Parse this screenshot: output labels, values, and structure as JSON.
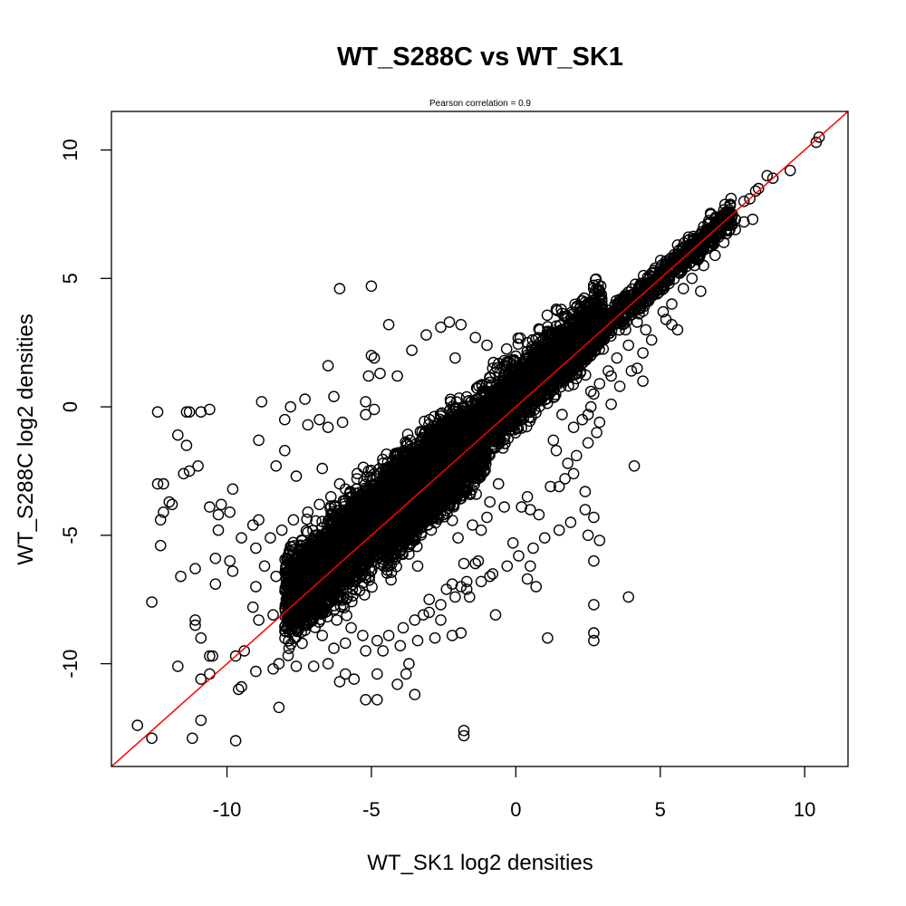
{
  "chart_data": {
    "type": "scatter",
    "title": "WT_S288C vs WT_SK1",
    "subtitle": "Pearson correlation =  0.9",
    "xlabel": "WT_SK1 log2 densities",
    "ylabel": "WT_S288C log2 densities",
    "xlim": [
      -14.0,
      11.5
    ],
    "ylim": [
      -14.0,
      11.5
    ],
    "x_ticks": [
      -10,
      -5,
      0,
      5,
      10
    ],
    "y_ticks": [
      -10,
      -5,
      0,
      5,
      10
    ],
    "x_tick_labels": [
      "-10",
      "-5",
      "0",
      "5",
      "10"
    ],
    "y_tick_labels": [
      "-10",
      "-5",
      "0",
      "5",
      "10"
    ],
    "grid": false,
    "point_color": "#000000",
    "fit_line": {
      "color": "#ff0000",
      "intercept": 0,
      "slope": 1
    },
    "points": [
      [
        10.5,
        10.5
      ],
      [
        10.4,
        10.3
      ],
      [
        9.5,
        9.2
      ],
      [
        8.9,
        8.9
      ],
      [
        8.7,
        9.0
      ],
      [
        8.4,
        8.5
      ],
      [
        8.3,
        8.4
      ],
      [
        8.1,
        8.1
      ],
      [
        7.9,
        8.0
      ],
      [
        8.2,
        7.3
      ],
      [
        7.6,
        7.3
      ],
      [
        7.3,
        7.5
      ],
      [
        7.0,
        7.2
      ],
      [
        6.8,
        6.6
      ],
      [
        6.5,
        6.7
      ],
      [
        6.2,
        6.3
      ],
      [
        6.0,
        6.1
      ],
      [
        5.8,
        5.6
      ],
      [
        5.5,
        5.8
      ],
      [
        5.3,
        5.1
      ],
      [
        5.0,
        5.2
      ],
      [
        6.4,
        4.5
      ],
      [
        5.6,
        6.3
      ],
      [
        4.9,
        4.4
      ],
      [
        4.6,
        4.8
      ],
      [
        4.3,
        4.0
      ],
      [
        4.0,
        4.1
      ],
      [
        3.8,
        3.6
      ],
      [
        3.5,
        3.7
      ],
      [
        3.2,
        3.0
      ],
      [
        3.0,
        3.3
      ],
      [
        2.7,
        2.5
      ],
      [
        2.5,
        2.9
      ],
      [
        2.2,
        2.0
      ],
      [
        2.0,
        2.4
      ],
      [
        5.2,
        3.4
      ],
      [
        5.4,
        3.2
      ],
      [
        4.5,
        3.0
      ],
      [
        5.6,
        3.0
      ],
      [
        4.4,
        1.0
      ],
      [
        4.2,
        1.5
      ],
      [
        3.9,
        2.4
      ],
      [
        3.5,
        1.9
      ],
      [
        3.3,
        1.2
      ],
      [
        2.9,
        0.9
      ],
      [
        2.7,
        0.5
      ],
      [
        2.5,
        -0.3
      ],
      [
        2.6,
        0.0
      ],
      [
        2.3,
        -0.5
      ],
      [
        2.0,
        -0.8
      ],
      [
        2.8,
        -1.0
      ],
      [
        3.2,
        1.4
      ],
      [
        1.8,
        -2.2
      ],
      [
        2.0,
        -2.6
      ],
      [
        1.5,
        -3.1
      ],
      [
        2.4,
        -3.3
      ],
      [
        2.4,
        -4.0
      ],
      [
        2.7,
        -4.3
      ],
      [
        2.5,
        -5.0
      ],
      [
        2.9,
        -5.2
      ],
      [
        2.7,
        -6.0
      ],
      [
        3.9,
        -7.4
      ],
      [
        2.7,
        -7.7
      ],
      [
        2.7,
        -8.8
      ],
      [
        2.7,
        -9.1
      ],
      [
        4.1,
        -2.3
      ],
      [
        1.1,
        -9.0
      ],
      [
        0.7,
        -7.0
      ],
      [
        0.5,
        -6.2
      ],
      [
        0.4,
        -6.7
      ],
      [
        1.2,
        -3.1
      ],
      [
        0.5,
        -4.0
      ],
      [
        -0.1,
        -5.3
      ],
      [
        -0.7,
        -8.1
      ],
      [
        -0.9,
        -6.6
      ],
      [
        -1.3,
        -6.0
      ],
      [
        -1.7,
        -6.8
      ],
      [
        -1.6,
        -7.4
      ],
      [
        -1.9,
        -8.8
      ],
      [
        -1.8,
        -12.6
      ],
      [
        -1.8,
        -12.8
      ],
      [
        -3.8,
        -10.4
      ],
      [
        -4.8,
        -10.4
      ],
      [
        -4.8,
        -11.4
      ],
      [
        -5.2,
        -11.4
      ],
      [
        -5.9,
        -10.4
      ],
      [
        -2.1,
        1.9
      ],
      [
        -2.3,
        3.3
      ],
      [
        -2.6,
        3.1
      ],
      [
        -1.9,
        3.2
      ],
      [
        -1.4,
        2.7
      ],
      [
        -1.0,
        2.4
      ],
      [
        -0.8,
        1.5
      ],
      [
        -3.1,
        2.8
      ],
      [
        -3.6,
        2.2
      ],
      [
        -4.4,
        3.2
      ],
      [
        -5.0,
        2.0
      ],
      [
        -4.9,
        1.9
      ],
      [
        -4.1,
        1.2
      ],
      [
        -5.1,
        1.2
      ],
      [
        -4.7,
        1.3
      ],
      [
        -5.2,
        0.2
      ],
      [
        -4.9,
        -0.1
      ],
      [
        -5.2,
        -0.3
      ],
      [
        -6.1,
        4.6
      ],
      [
        -5.0,
        4.7
      ],
      [
        -6.5,
        1.6
      ],
      [
        -7.3,
        0.3
      ],
      [
        -6.3,
        0.4
      ],
      [
        -7.8,
        0.0
      ],
      [
        -8.8,
        0.2
      ],
      [
        -6.8,
        -0.5
      ],
      [
        -6.5,
        -0.8
      ],
      [
        -7.2,
        -0.7
      ],
      [
        -6.0,
        -0.6
      ],
      [
        -8.0,
        -0.5
      ],
      [
        -10.6,
        -0.1
      ],
      [
        -10.9,
        -0.2
      ],
      [
        -11.4,
        -0.2
      ],
      [
        -11.3,
        -0.2
      ],
      [
        -12.4,
        -0.2
      ],
      [
        -11.7,
        -1.1
      ],
      [
        -11.4,
        -1.5
      ],
      [
        -11.0,
        -2.3
      ],
      [
        -11.3,
        -2.5
      ],
      [
        -11.5,
        -2.6
      ],
      [
        -12.2,
        -3.0
      ],
      [
        -12.4,
        -3.0
      ],
      [
        -12.0,
        -3.7
      ],
      [
        -11.9,
        -3.8
      ],
      [
        -12.2,
        -4.1
      ],
      [
        -12.3,
        -4.4
      ],
      [
        -12.3,
        -5.4
      ],
      [
        -11.6,
        -6.6
      ],
      [
        -11.1,
        -6.3
      ],
      [
        -12.6,
        -7.6
      ],
      [
        -11.1,
        -8.3
      ],
      [
        -11.1,
        -8.5
      ],
      [
        -10.9,
        -9.0
      ],
      [
        -10.6,
        -9.7
      ],
      [
        -10.6,
        -10.4
      ],
      [
        -10.9,
        -10.6
      ],
      [
        -11.7,
        -10.1
      ],
      [
        -11.2,
        -12.9
      ],
      [
        -10.9,
        -12.2
      ],
      [
        -12.6,
        -12.9
      ],
      [
        -13.1,
        -12.4
      ],
      [
        -9.7,
        -13.0
      ],
      [
        -9.5,
        -10.9
      ],
      [
        -9.6,
        -11.0
      ],
      [
        -8.2,
        -11.7
      ],
      [
        -8.4,
        -10.2
      ],
      [
        -9.7,
        -9.7
      ],
      [
        -10.5,
        -9.7
      ],
      [
        -9.9,
        -6.0
      ],
      [
        -9.8,
        -6.4
      ],
      [
        -10.4,
        -6.9
      ],
      [
        -10.4,
        -5.9
      ],
      [
        -10.3,
        -4.8
      ],
      [
        -10.6,
        -3.9
      ],
      [
        -10.3,
        -4.2
      ],
      [
        -9.8,
        -3.2
      ],
      [
        -10.2,
        -3.8
      ],
      [
        -9.9,
        -4.1
      ],
      [
        -9.5,
        -5.1
      ],
      [
        -9.1,
        -4.6
      ],
      [
        -8.9,
        -4.4
      ],
      [
        -8.9,
        -1.3
      ],
      [
        -8.0,
        -1.7
      ],
      [
        -8.3,
        -2.3
      ],
      [
        -7.6,
        -2.7
      ],
      [
        -6.7,
        -2.4
      ],
      [
        -6.1,
        -3.0
      ],
      [
        -9.0,
        -7.0
      ],
      [
        -9.1,
        -7.8
      ],
      [
        -8.9,
        -8.3
      ],
      [
        -9.4,
        -9.5
      ],
      [
        -9.0,
        -10.3
      ],
      [
        -8.2,
        -10.0
      ],
      [
        -7.6,
        -10.1
      ],
      [
        -7.0,
        -10.1
      ],
      [
        -6.5,
        -10.0
      ],
      [
        -6.1,
        -10.7
      ],
      [
        -5.6,
        -10.6
      ],
      [
        -3.7,
        -10.0
      ],
      [
        -4.1,
        -10.8
      ],
      [
        -3.5,
        -11.2
      ],
      [
        -3.2,
        -8.1
      ],
      [
        -2.6,
        -8.3
      ],
      [
        -2.2,
        -8.9
      ],
      [
        -2.8,
        -9.0
      ],
      [
        -3.4,
        -9.1
      ],
      [
        -4.0,
        -9.3
      ],
      [
        -4.6,
        -9.5
      ],
      [
        -5.2,
        -9.5
      ],
      [
        -5.9,
        -9.2
      ],
      [
        -6.3,
        -9.4
      ],
      [
        -6.7,
        -8.9
      ],
      [
        -7.3,
        -8.7
      ],
      [
        -7.9,
        -8.5
      ],
      [
        -8.4,
        -8.1
      ],
      [
        -3.0,
        -7.5
      ],
      [
        -2.4,
        -7.1
      ],
      [
        -1.9,
        -7.0
      ],
      [
        -1.4,
        -6.1
      ],
      [
        -1.8,
        -6.1
      ],
      [
        -2.2,
        -6.9
      ],
      [
        -3.4,
        -6.2
      ],
      [
        -1.0,
        -4.3
      ],
      [
        -1.2,
        -4.8
      ],
      [
        -0.4,
        -3.9
      ],
      [
        0.2,
        -3.9
      ],
      [
        -0.6,
        -3.0
      ],
      [
        -0.9,
        -3.7
      ],
      [
        -1.5,
        -4.6
      ],
      [
        -2.0,
        -5.1
      ],
      [
        1.3,
        -1.3
      ],
      [
        1.6,
        -0.3
      ],
      [
        1.4,
        -1.7
      ],
      [
        3.6,
        3.4
      ],
      [
        2.6,
        0.6
      ],
      [
        3.8,
        3.0
      ],
      [
        4.2,
        3.3
      ],
      [
        1.4,
        3.8
      ],
      [
        0.4,
        2.5
      ],
      [
        -0.4,
        1.8
      ],
      [
        1.1,
        2.8
      ],
      [
        1.5,
        2.9
      ],
      [
        2.0,
        3.0
      ],
      [
        2.1,
        2.7
      ],
      [
        1.8,
        2.3
      ],
      [
        1.6,
        1.5
      ],
      [
        0.9,
        1.1
      ],
      [
        0.3,
        0.6
      ],
      [
        -0.2,
        0.4
      ],
      [
        -0.7,
        0.1
      ],
      [
        -1.1,
        -0.2
      ],
      [
        -1.5,
        -0.3
      ],
      [
        -2.0,
        -0.5
      ],
      [
        -2.4,
        -0.9
      ],
      [
        -2.9,
        -1.0
      ],
      [
        -3.3,
        -1.5
      ],
      [
        -3.7,
        -1.7
      ],
      [
        -4.2,
        -1.9
      ],
      [
        -4.6,
        -2.2
      ],
      [
        -5.1,
        -2.5
      ],
      [
        -5.5,
        -2.8
      ],
      [
        -5.9,
        -3.2
      ],
      [
        -6.4,
        -3.5
      ],
      [
        -6.8,
        -3.8
      ],
      [
        -7.2,
        -4.1
      ],
      [
        -7.7,
        -4.4
      ],
      [
        -8.1,
        -4.8
      ],
      [
        -8.5,
        -5.1
      ],
      [
        -9.0,
        -5.5
      ],
      [
        -8.7,
        -6.2
      ],
      [
        -8.3,
        -6.6
      ],
      [
        -7.9,
        -7.0
      ],
      [
        -7.5,
        -7.3
      ],
      [
        -7.1,
        -7.7
      ],
      [
        -6.6,
        -8.0
      ],
      [
        -6.2,
        -8.3
      ],
      [
        -5.7,
        -8.6
      ],
      [
        -5.3,
        -8.9
      ],
      [
        -4.8,
        -9.1
      ],
      [
        -4.4,
        -8.9
      ],
      [
        -3.9,
        -8.6
      ],
      [
        -3.5,
        -8.3
      ],
      [
        -3.0,
        -8.0
      ],
      [
        -2.6,
        -7.7
      ],
      [
        -2.1,
        -7.4
      ],
      [
        -1.7,
        -7.1
      ],
      [
        -1.2,
        -6.8
      ],
      [
        -0.8,
        -6.5
      ],
      [
        -0.3,
        -6.2
      ],
      [
        0.1,
        -5.8
      ],
      [
        0.6,
        -5.5
      ],
      [
        1.0,
        -5.1
      ],
      [
        1.5,
        -4.8
      ],
      [
        1.9,
        -4.5
      ],
      [
        0.8,
        -4.2
      ],
      [
        0.4,
        -3.5
      ],
      [
        1.7,
        -2.8
      ],
      [
        2.1,
        -1.9
      ],
      [
        2.5,
        -1.4
      ],
      [
        2.9,
        -0.6
      ],
      [
        3.3,
        0.1
      ],
      [
        3.6,
        0.8
      ],
      [
        4.0,
        1.4
      ],
      [
        4.4,
        2.1
      ],
      [
        4.7,
        2.6
      ],
      [
        5.1,
        3.7
      ],
      [
        5.4,
        4.0
      ],
      [
        5.8,
        4.6
      ],
      [
        6.1,
        5.0
      ],
      [
        6.5,
        5.5
      ],
      [
        6.9,
        5.9
      ],
      [
        7.2,
        6.4
      ],
      [
        7.6,
        6.9
      ],
      [
        7.9,
        7.2
      ],
      [
        -6.6,
        -6.0
      ],
      [
        -6.0,
        -5.5
      ],
      [
        -5.5,
        -4.9
      ],
      [
        -4.9,
        -4.3
      ],
      [
        -4.3,
        -3.8
      ],
      [
        -3.8,
        -3.2
      ],
      [
        -3.2,
        -2.7
      ],
      [
        -2.7,
        -2.1
      ],
      [
        -2.1,
        -1.5
      ],
      [
        -1.5,
        -1.0
      ],
      [
        -1.0,
        -0.4
      ],
      [
        -0.4,
        0.1
      ],
      [
        0.2,
        0.7
      ],
      [
        -7.2,
        -6.6
      ],
      [
        -7.7,
        -7.1
      ]
    ],
    "dense_band": [
      {
        "x_from": -7.5,
        "x_to": 3.0,
        "center_slope": 1.0,
        "center_intercept": 0.6,
        "half_width": 1.2
      },
      {
        "x_from": -6.0,
        "x_to": 2.0,
        "center_slope": 1.0,
        "center_intercept": 0.3,
        "half_width": 0.9
      },
      {
        "x_from": -8.0,
        "x_to": -2.0,
        "center_slope": 1.0,
        "center_intercept": 0.4,
        "half_width": 1.6
      },
      {
        "x_from": 2.0,
        "x_to": 7.5,
        "center_slope": 1.0,
        "center_intercept": 0.0,
        "half_width": 0.5
      },
      {
        "x_from": -4.5,
        "x_to": -1.0,
        "center_slope": 1.0,
        "center_intercept": -0.3,
        "half_width": 1.2
      }
    ]
  }
}
